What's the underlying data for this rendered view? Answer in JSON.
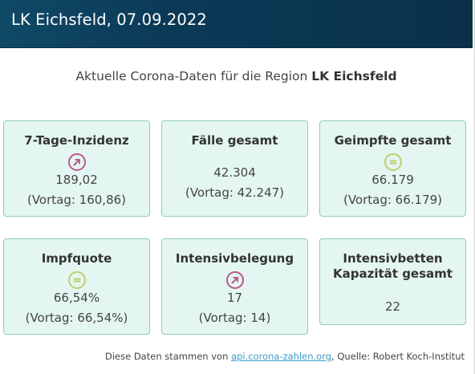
{
  "header": {
    "title": "LK Eichsfeld, 07.09.2022"
  },
  "subtitle": {
    "prefix": "Aktuelle Corona-Daten für die Region ",
    "region": "LK Eichsfeld"
  },
  "cards": [
    {
      "title": "7-Tage-Inzidenz",
      "icon": "trend-up-icon",
      "value": "189,02",
      "previous": "(Vortag: 160,86)"
    },
    {
      "title": "Fälle gesamt",
      "value": "42.304",
      "previous": "(Vortag: 42.247)"
    },
    {
      "title": "Geimpfte gesamt",
      "icon": "trend-equal-icon",
      "value": "66.179",
      "previous": "(Vortag: 66.179)"
    },
    {
      "title": "Impfquote",
      "icon": "trend-equal-icon",
      "value": "66,54%",
      "previous": "(Vortag: 66,54%)"
    },
    {
      "title": "Intensivbelegung",
      "icon": "trend-up-icon",
      "value": "17",
      "previous": "(Vortag: 14)"
    },
    {
      "title_line1": "Intensivbetten",
      "title_line2": "Kapazität gesamt",
      "value": "22"
    }
  ],
  "footer": {
    "prefix": "Diese Daten stammen von ",
    "link": "api.corona-zahlen.org",
    "suffix": ", Quelle: Robert Koch-Institut"
  },
  "colors": {
    "header_bg": "#0b3a57",
    "card_bg": "#e4f6f1",
    "card_border": "#8fcbbd",
    "trend_up": "#b9588f",
    "trend_equal": "#bfcf6a",
    "link": "#3a9cc9"
  }
}
